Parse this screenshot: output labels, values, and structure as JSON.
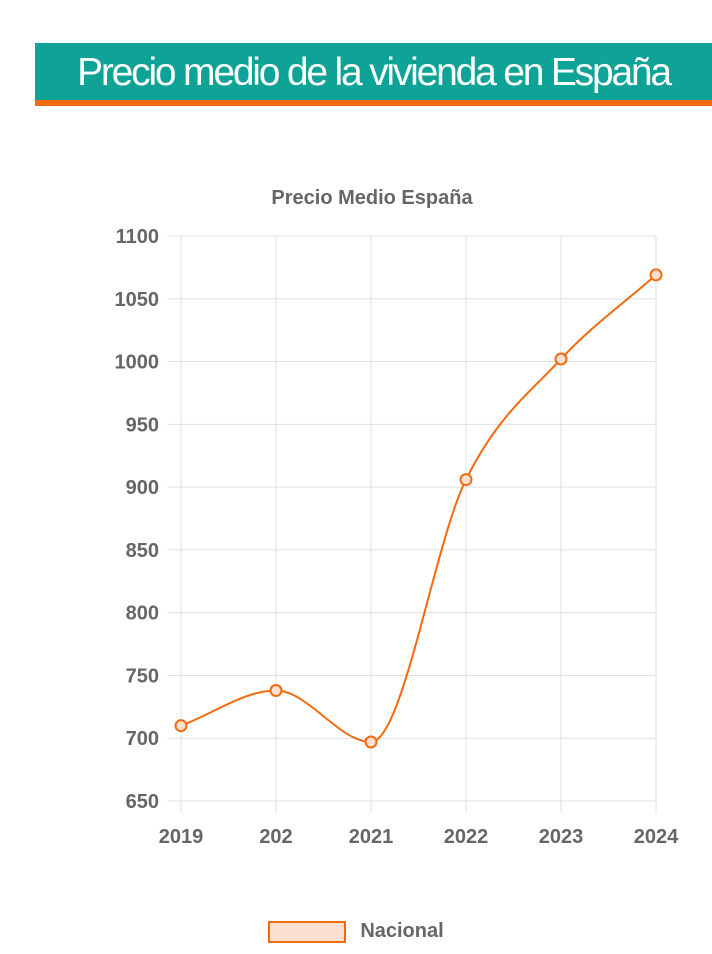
{
  "header": {
    "title": "Precio medio de la vivienda en España"
  },
  "colors": {
    "banner": "#0ea396",
    "accent": "#f26a0f",
    "legend_fill": "#fde0d0",
    "grid": "#e0e0e0",
    "text": "#666666"
  },
  "chart_data": {
    "type": "line",
    "title": "Precio Medio España",
    "categories": [
      "2019",
      "202",
      "2021",
      "2022",
      "2023",
      "2024"
    ],
    "series": [
      {
        "name": "Nacional",
        "values": [
          710,
          738,
          697,
          906,
          1002,
          1069
        ]
      }
    ],
    "ylim": [
      650,
      1100
    ],
    "yticks": [
      650,
      700,
      750,
      800,
      850,
      900,
      950,
      1000,
      1050,
      1100
    ],
    "grid": true,
    "legend": "bottom",
    "curve": "smooth"
  }
}
